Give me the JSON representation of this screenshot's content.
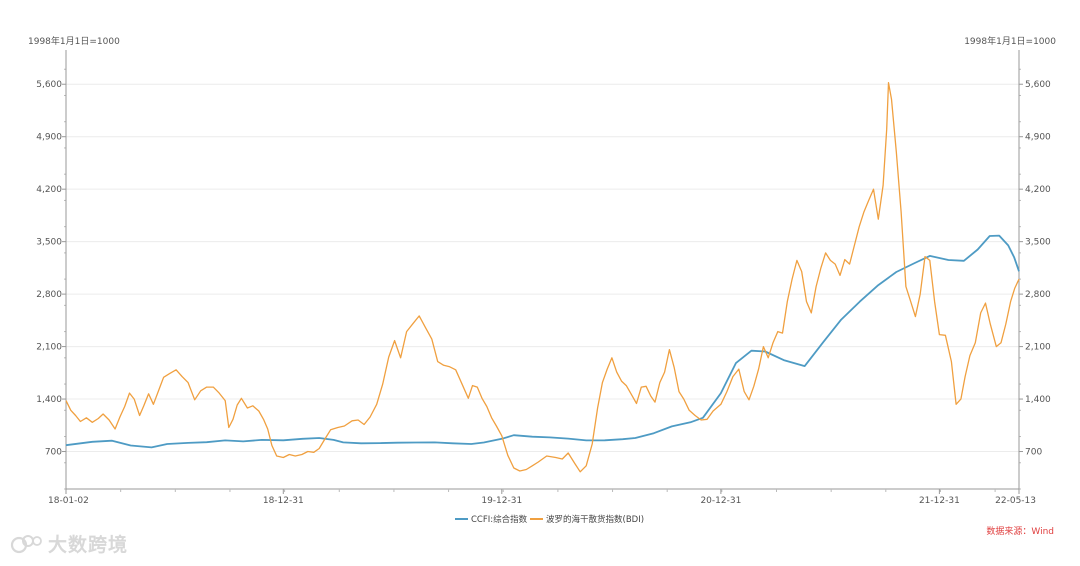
{
  "chart_data": {
    "type": "line",
    "left_axis": {
      "unit_label": "1998年1月1日=1000",
      "ticks": [
        700,
        1400,
        2100,
        2800,
        3500,
        4200,
        4900,
        5600
      ],
      "tick_labels": [
        "700",
        "1,400",
        "2,100",
        "2,800",
        "3,500",
        "4,200",
        "4,900",
        "5,600"
      ],
      "ylim": [
        200,
        5950
      ]
    },
    "right_axis": {
      "unit_label": "1998年1月1日=1000",
      "ticks": [
        700,
        1400,
        2100,
        2800,
        3500,
        4200,
        4900,
        5600
      ],
      "tick_labels": [
        "700",
        "1,400",
        "2,100",
        "2,800",
        "3,500",
        "4,200",
        "4,900",
        "5,600"
      ],
      "ylim": [
        200,
        5950
      ]
    },
    "x_axis": {
      "tick_labels": [
        {
          "label": "18-01-02",
          "date": "2018-01-02"
        },
        {
          "label": "18-12-31",
          "date": "2018-12-31"
        },
        {
          "label": "19-12-31",
          "date": "2019-12-31"
        },
        {
          "label": "20-12-31",
          "date": "2020-12-31"
        },
        {
          "label": "21-12-31",
          "date": "2021-12-31"
        },
        {
          "label": "22-05-13",
          "date": "2022-05-13"
        }
      ],
      "xlim": [
        "2018-01-02",
        "2022-05-13"
      ]
    },
    "grid": "horizontal",
    "legend_placement": "bottom-center",
    "series": [
      {
        "name": "CCFI:综合指数",
        "color": "#4e9bc4",
        "points": [
          [
            "2018-01-02",
            785
          ],
          [
            "2018-02-15",
            830
          ],
          [
            "2018-03-20",
            845
          ],
          [
            "2018-04-20",
            780
          ],
          [
            "2018-05-25",
            755
          ],
          [
            "2018-06-20",
            800
          ],
          [
            "2018-07-25",
            815
          ],
          [
            "2018-08-25",
            825
          ],
          [
            "2018-09-25",
            848
          ],
          [
            "2018-10-25",
            835
          ],
          [
            "2018-11-25",
            855
          ],
          [
            "2018-12-31",
            850
          ],
          [
            "2019-02-01",
            870
          ],
          [
            "2019-03-01",
            880
          ],
          [
            "2019-03-25",
            855
          ],
          [
            "2019-04-10",
            822
          ],
          [
            "2019-05-10",
            810
          ],
          [
            "2019-06-10",
            812
          ],
          [
            "2019-07-10",
            818
          ],
          [
            "2019-08-10",
            820
          ],
          [
            "2019-09-10",
            822
          ],
          [
            "2019-10-10",
            810
          ],
          [
            "2019-11-10",
            800
          ],
          [
            "2019-12-01",
            820
          ],
          [
            "2019-12-31",
            870
          ],
          [
            "2020-01-20",
            918
          ],
          [
            "2020-02-20",
            898
          ],
          [
            "2020-03-20",
            888
          ],
          [
            "2020-04-20",
            872
          ],
          [
            "2020-05-20",
            848
          ],
          [
            "2020-06-20",
            850
          ],
          [
            "2020-07-20",
            865
          ],
          [
            "2020-08-10",
            880
          ],
          [
            "2020-09-10",
            945
          ],
          [
            "2020-10-10",
            1035
          ],
          [
            "2020-11-10",
            1090
          ],
          [
            "2020-12-01",
            1150
          ],
          [
            "2020-12-31",
            1480
          ],
          [
            "2021-01-25",
            1880
          ],
          [
            "2021-02-20",
            2045
          ],
          [
            "2021-03-15",
            2035
          ],
          [
            "2021-04-15",
            1920
          ],
          [
            "2021-05-20",
            1840
          ],
          [
            "2021-06-20",
            2160
          ],
          [
            "2021-07-20",
            2460
          ],
          [
            "2021-08-20",
            2700
          ],
          [
            "2021-09-20",
            2920
          ],
          [
            "2021-10-20",
            3095
          ],
          [
            "2021-11-20",
            3215
          ],
          [
            "2021-12-15",
            3310
          ],
          [
            "2022-01-15",
            3255
          ],
          [
            "2022-02-10",
            3245
          ],
          [
            "2022-03-05",
            3395
          ],
          [
            "2022-03-25",
            3575
          ],
          [
            "2022-04-10",
            3580
          ],
          [
            "2022-04-25",
            3450
          ],
          [
            "2022-05-05",
            3290
          ],
          [
            "2022-05-13",
            3105
          ]
        ]
      },
      {
        "name": "波罗的海干散货指数(BDI)",
        "color": "#f0a040",
        "points": [
          [
            "2018-01-02",
            1380
          ],
          [
            "2018-01-10",
            1250
          ],
          [
            "2018-01-18",
            1180
          ],
          [
            "2018-01-26",
            1100
          ],
          [
            "2018-02-05",
            1150
          ],
          [
            "2018-02-15",
            1090
          ],
          [
            "2018-02-25",
            1140
          ],
          [
            "2018-03-05",
            1200
          ],
          [
            "2018-03-15",
            1120
          ],
          [
            "2018-03-25",
            1000
          ],
          [
            "2018-04-02",
            1160
          ],
          [
            "2018-04-10",
            1300
          ],
          [
            "2018-04-18",
            1480
          ],
          [
            "2018-04-26",
            1400
          ],
          [
            "2018-05-05",
            1180
          ],
          [
            "2018-05-12",
            1310
          ],
          [
            "2018-05-20",
            1470
          ],
          [
            "2018-05-28",
            1330
          ],
          [
            "2018-06-05",
            1500
          ],
          [
            "2018-06-14",
            1690
          ],
          [
            "2018-06-24",
            1740
          ],
          [
            "2018-07-05",
            1790
          ],
          [
            "2018-07-15",
            1700
          ],
          [
            "2018-07-25",
            1620
          ],
          [
            "2018-08-05",
            1390
          ],
          [
            "2018-08-15",
            1510
          ],
          [
            "2018-08-25",
            1560
          ],
          [
            "2018-09-05",
            1560
          ],
          [
            "2018-09-15",
            1480
          ],
          [
            "2018-09-25",
            1380
          ],
          [
            "2018-10-01",
            1020
          ],
          [
            "2018-10-08",
            1130
          ],
          [
            "2018-10-15",
            1320
          ],
          [
            "2018-10-22",
            1410
          ],
          [
            "2018-11-01",
            1280
          ],
          [
            "2018-11-10",
            1310
          ],
          [
            "2018-11-20",
            1240
          ],
          [
            "2018-11-28",
            1130
          ],
          [
            "2018-12-05",
            1000
          ],
          [
            "2018-12-12",
            780
          ],
          [
            "2018-12-20",
            640
          ],
          [
            "2018-12-31",
            620
          ],
          [
            "2019-01-10",
            660
          ],
          [
            "2019-01-20",
            640
          ],
          [
            "2019-01-31",
            660
          ],
          [
            "2019-02-10",
            700
          ],
          [
            "2019-02-20",
            690
          ],
          [
            "2019-03-01",
            740
          ],
          [
            "2019-03-10",
            860
          ],
          [
            "2019-03-20",
            990
          ],
          [
            "2019-04-01",
            1020
          ],
          [
            "2019-04-12",
            1040
          ],
          [
            "2019-04-25",
            1110
          ],
          [
            "2019-05-05",
            1120
          ],
          [
            "2019-05-15",
            1060
          ],
          [
            "2019-05-25",
            1160
          ],
          [
            "2019-06-05",
            1330
          ],
          [
            "2019-06-15",
            1600
          ],
          [
            "2019-06-25",
            1960
          ],
          [
            "2019-07-05",
            2180
          ],
          [
            "2019-07-15",
            1950
          ],
          [
            "2019-07-25",
            2300
          ],
          [
            "2019-08-05",
            2410
          ],
          [
            "2019-08-15",
            2510
          ],
          [
            "2019-08-25",
            2360
          ],
          [
            "2019-09-05",
            2200
          ],
          [
            "2019-09-15",
            1900
          ],
          [
            "2019-09-25",
            1850
          ],
          [
            "2019-10-05",
            1830
          ],
          [
            "2019-10-15",
            1790
          ],
          [
            "2019-10-25",
            1610
          ],
          [
            "2019-11-05",
            1410
          ],
          [
            "2019-11-12",
            1580
          ],
          [
            "2019-11-20",
            1560
          ],
          [
            "2019-11-28",
            1410
          ],
          [
            "2019-12-06",
            1300
          ],
          [
            "2019-12-14",
            1150
          ],
          [
            "2019-12-22",
            1040
          ],
          [
            "2019-12-31",
            910
          ],
          [
            "2020-01-10",
            650
          ],
          [
            "2020-01-20",
            480
          ],
          [
            "2020-01-30",
            440
          ],
          [
            "2020-02-10",
            460
          ],
          [
            "2020-02-20",
            510
          ],
          [
            "2020-03-01",
            560
          ],
          [
            "2020-03-15",
            640
          ],
          [
            "2020-03-30",
            620
          ],
          [
            "2020-04-10",
            600
          ],
          [
            "2020-04-20",
            680
          ],
          [
            "2020-05-01",
            540
          ],
          [
            "2020-05-10",
            430
          ],
          [
            "2020-05-20",
            510
          ],
          [
            "2020-05-30",
            800
          ],
          [
            "2020-06-08",
            1280
          ],
          [
            "2020-06-16",
            1620
          ],
          [
            "2020-06-24",
            1800
          ],
          [
            "2020-07-02",
            1950
          ],
          [
            "2020-07-10",
            1760
          ],
          [
            "2020-07-18",
            1640
          ],
          [
            "2020-07-26",
            1580
          ],
          [
            "2020-08-05",
            1440
          ],
          [
            "2020-08-12",
            1340
          ],
          [
            "2020-08-20",
            1560
          ],
          [
            "2020-08-28",
            1570
          ],
          [
            "2020-09-05",
            1440
          ],
          [
            "2020-09-12",
            1360
          ],
          [
            "2020-09-20",
            1620
          ],
          [
            "2020-09-28",
            1760
          ],
          [
            "2020-10-06",
            2060
          ],
          [
            "2020-10-14",
            1820
          ],
          [
            "2020-10-22",
            1500
          ],
          [
            "2020-10-30",
            1400
          ],
          [
            "2020-11-08",
            1250
          ],
          [
            "2020-11-18",
            1180
          ],
          [
            "2020-11-28",
            1120
          ],
          [
            "2020-12-08",
            1130
          ],
          [
            "2020-12-18",
            1240
          ],
          [
            "2020-12-31",
            1330
          ],
          [
            "2021-01-10",
            1500
          ],
          [
            "2021-01-20",
            1700
          ],
          [
            "2021-01-30",
            1800
          ],
          [
            "2021-02-08",
            1500
          ],
          [
            "2021-02-16",
            1390
          ],
          [
            "2021-02-24",
            1570
          ],
          [
            "2021-03-04",
            1800
          ],
          [
            "2021-03-12",
            2100
          ],
          [
            "2021-03-20",
            1950
          ],
          [
            "2021-03-28",
            2150
          ],
          [
            "2021-04-05",
            2300
          ],
          [
            "2021-04-13",
            2280
          ],
          [
            "2021-04-21",
            2700
          ],
          [
            "2021-04-29",
            3000
          ],
          [
            "2021-05-07",
            3250
          ],
          [
            "2021-05-15",
            3100
          ],
          [
            "2021-05-23",
            2700
          ],
          [
            "2021-05-31",
            2550
          ],
          [
            "2021-06-08",
            2900
          ],
          [
            "2021-06-16",
            3150
          ],
          [
            "2021-06-24",
            3350
          ],
          [
            "2021-07-02",
            3250
          ],
          [
            "2021-07-10",
            3200
          ],
          [
            "2021-07-18",
            3050
          ],
          [
            "2021-07-26",
            3260
          ],
          [
            "2021-08-03",
            3200
          ],
          [
            "2021-08-11",
            3450
          ],
          [
            "2021-08-19",
            3700
          ],
          [
            "2021-08-27",
            3900
          ],
          [
            "2021-09-04",
            4050
          ],
          [
            "2021-09-12",
            4200
          ],
          [
            "2021-09-20",
            3800
          ],
          [
            "2021-09-28",
            4250
          ],
          [
            "2021-10-04",
            5000
          ],
          [
            "2021-10-07",
            5620
          ],
          [
            "2021-10-12",
            5400
          ],
          [
            "2021-10-20",
            4700
          ],
          [
            "2021-10-28",
            3900
          ],
          [
            "2021-11-05",
            2900
          ],
          [
            "2021-11-13",
            2700
          ],
          [
            "2021-11-21",
            2500
          ],
          [
            "2021-11-29",
            2800
          ],
          [
            "2021-12-07",
            3300
          ],
          [
            "2021-12-15",
            3250
          ],
          [
            "2021-12-23",
            2700
          ],
          [
            "2021-12-31",
            2260
          ],
          [
            "2022-01-10",
            2250
          ],
          [
            "2022-01-20",
            1900
          ],
          [
            "2022-01-28",
            1330
          ],
          [
            "2022-02-05",
            1400
          ],
          [
            "2022-02-12",
            1700
          ],
          [
            "2022-02-20",
            1980
          ],
          [
            "2022-03-01",
            2150
          ],
          [
            "2022-03-10",
            2550
          ],
          [
            "2022-03-18",
            2680
          ],
          [
            "2022-03-26",
            2400
          ],
          [
            "2022-04-05",
            2100
          ],
          [
            "2022-04-13",
            2150
          ],
          [
            "2022-04-21",
            2400
          ],
          [
            "2022-04-29",
            2700
          ],
          [
            "2022-05-06",
            2880
          ],
          [
            "2022-05-13",
            3000
          ]
        ]
      }
    ]
  },
  "source_note": "数据来源：Wind",
  "source_color": "#e04040",
  "watermark_text": "大数跨境"
}
